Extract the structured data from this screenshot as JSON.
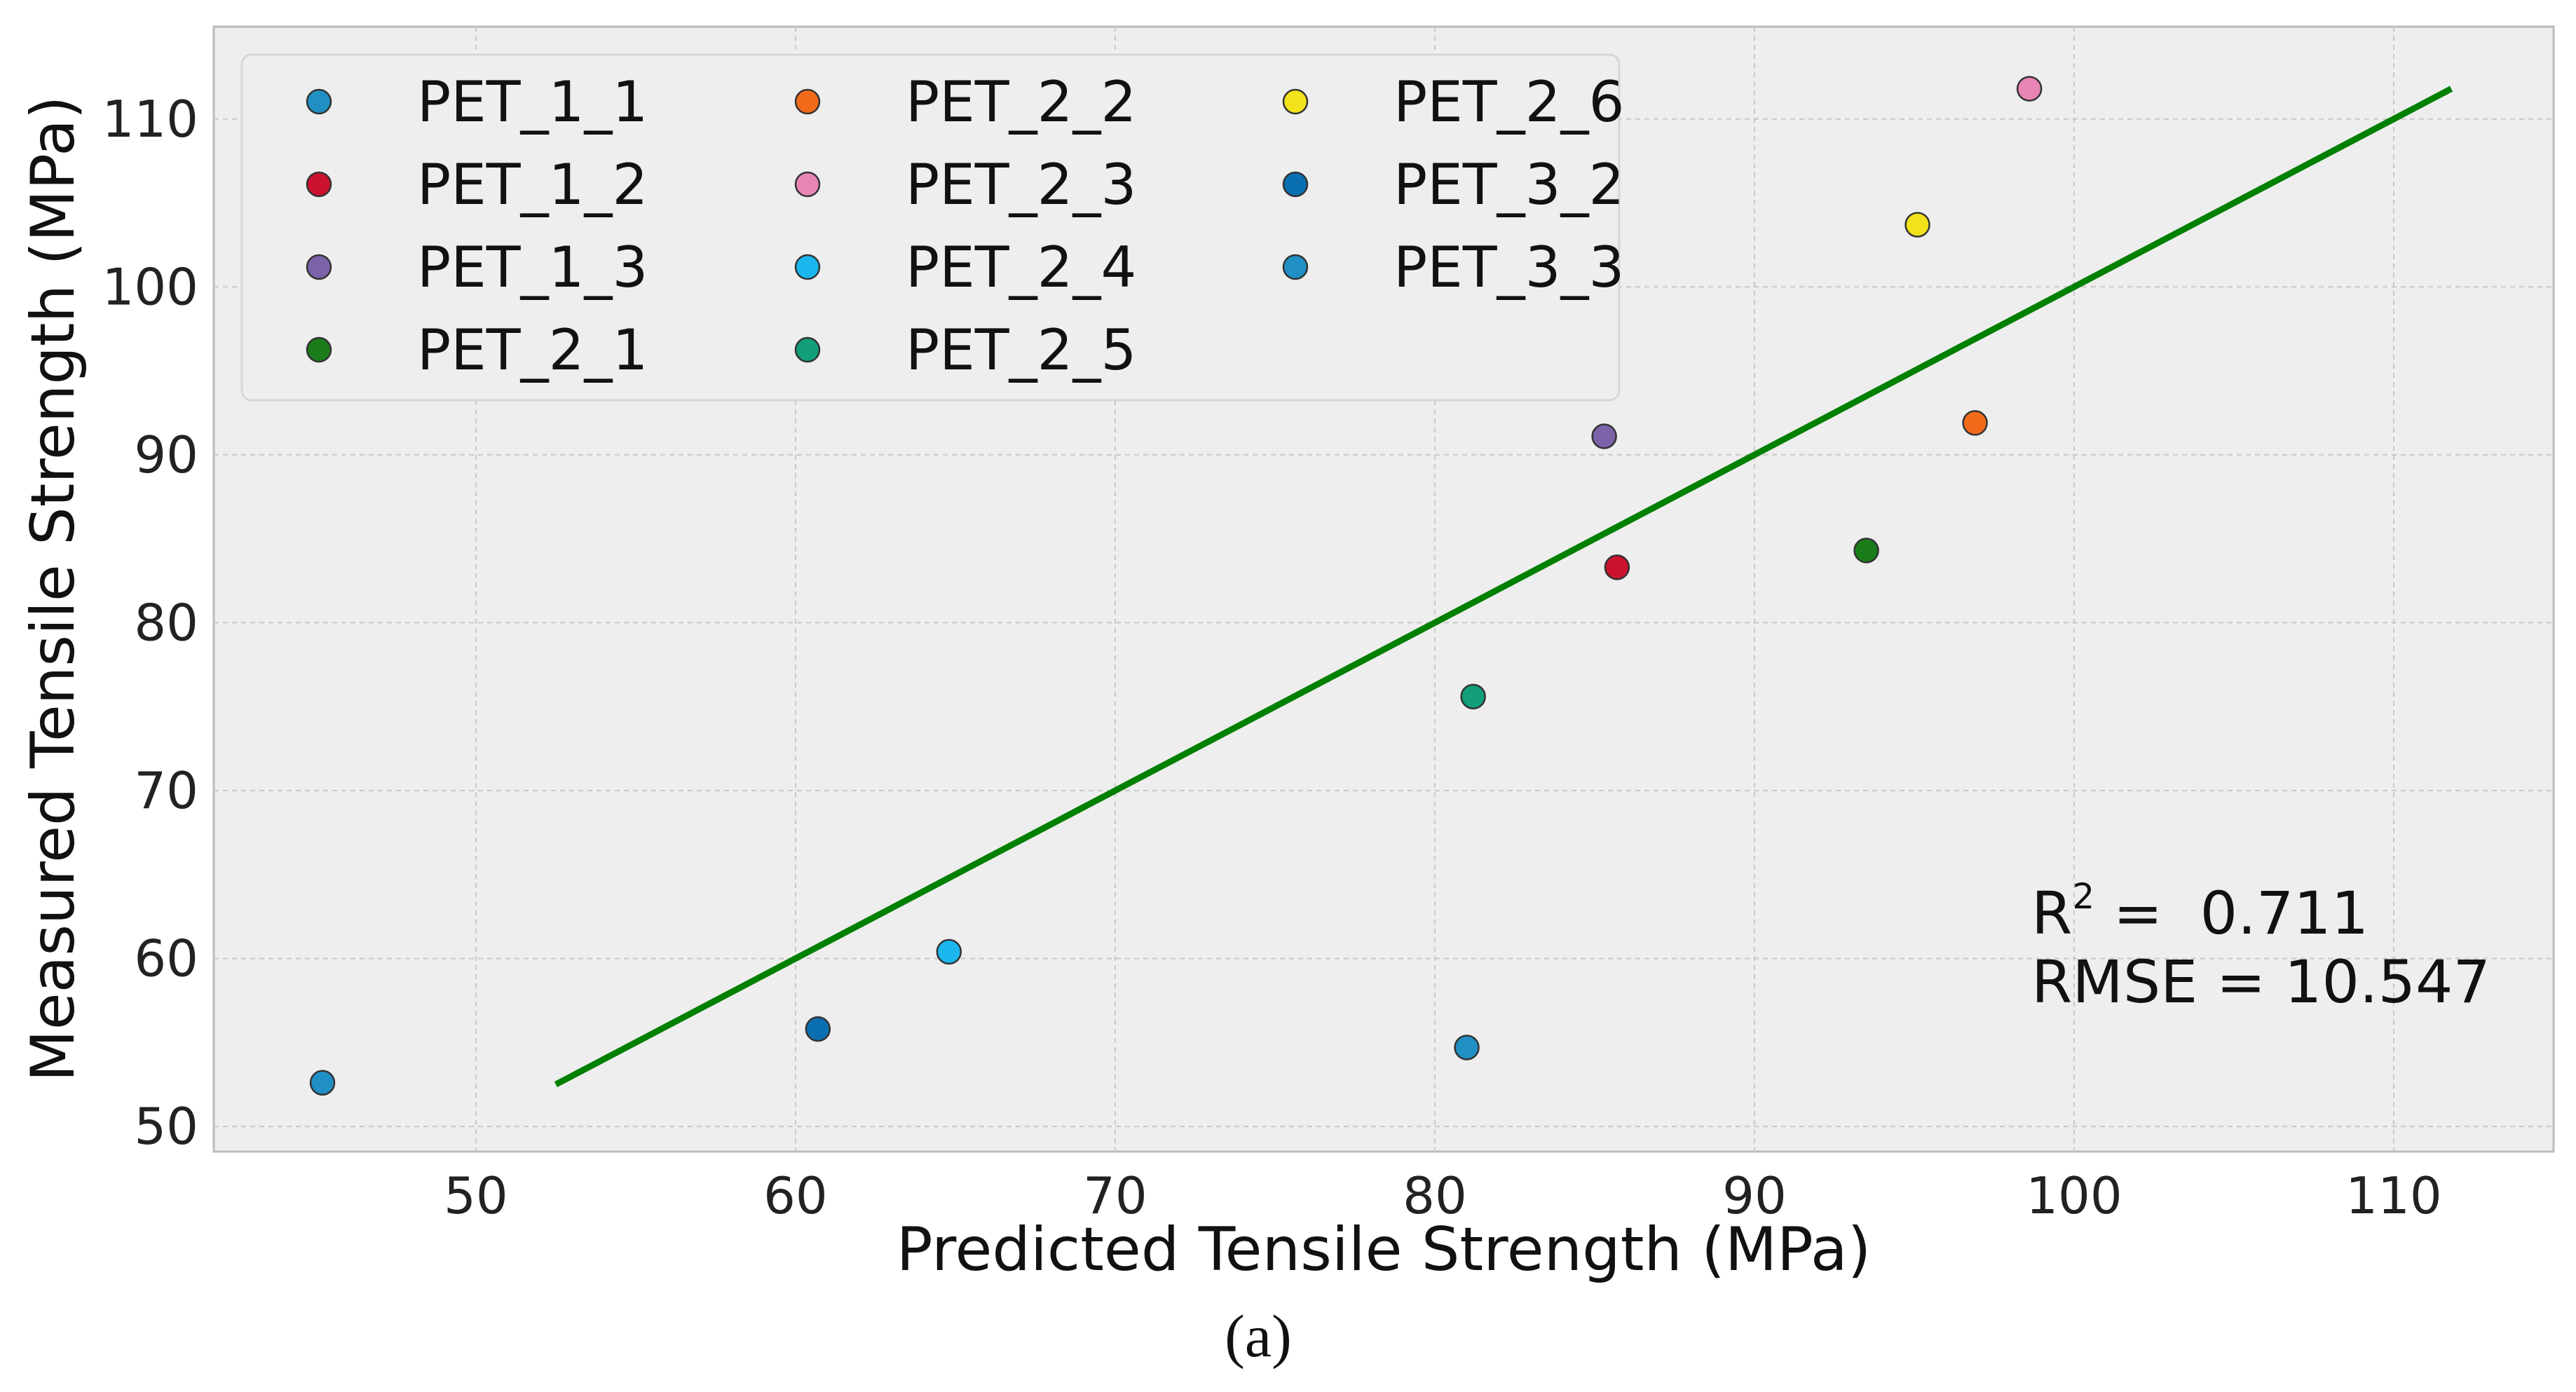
{
  "chart_data": {
    "type": "scatter",
    "title": "",
    "xlabel": "Predicted Tensile Strength (MPa)",
    "ylabel": "Measured Tensile Strength (MPa)",
    "xlim": [
      41.8,
      115.0
    ],
    "ylim": [
      48.5,
      115.5
    ],
    "xticks": [
      50,
      60,
      70,
      80,
      90,
      100,
      110
    ],
    "yticks": [
      50,
      60,
      70,
      80,
      90,
      100,
      110
    ],
    "grid": true,
    "legend_position": "top-left",
    "legend_columns": 3,
    "series": [
      {
        "name": "PET_1_1",
        "color": "#1f8fc4",
        "points": [
          {
            "x": 45.2,
            "y": 52.6
          },
          {
            "x": 81.0,
            "y": 54.7
          }
        ]
      },
      {
        "name": "PET_1_2",
        "color": "#cc1130",
        "points": [
          {
            "x": 85.7,
            "y": 83.3
          }
        ]
      },
      {
        "name": "PET_1_3",
        "color": "#7c62a9",
        "points": [
          {
            "x": 85.3,
            "y": 91.1
          }
        ]
      },
      {
        "name": "PET_2_1",
        "color": "#1a7d1a",
        "points": [
          {
            "x": 93.5,
            "y": 84.3
          }
        ]
      },
      {
        "name": "PET_2_2",
        "color": "#f16a1a",
        "points": [
          {
            "x": 96.9,
            "y": 91.9
          }
        ]
      },
      {
        "name": "PET_2_3",
        "color": "#e985b6",
        "points": [
          {
            "x": 98.6,
            "y": 111.8
          }
        ]
      },
      {
        "name": "PET_2_4",
        "color": "#1ab6ed",
        "points": [
          {
            "x": 64.8,
            "y": 60.4
          }
        ]
      },
      {
        "name": "PET_2_5",
        "color": "#119e79",
        "points": [
          {
            "x": 81.2,
            "y": 75.6
          }
        ]
      },
      {
        "name": "PET_2_6",
        "color": "#f2e21c",
        "points": [
          {
            "x": 95.1,
            "y": 103.7
          }
        ]
      },
      {
        "name": "PET_3_2",
        "color": "#0a6fb0",
        "points": [
          {
            "x": 60.7,
            "y": 55.8
          }
        ]
      },
      {
        "name": "PET_3_3",
        "color": "#1f8fc4",
        "points": []
      }
    ],
    "fit_line": {
      "color": "#008000",
      "x": [
        52.5,
        111.8
      ],
      "y": [
        52.5,
        111.8
      ]
    },
    "annotations": {
      "r2_prefix": "R",
      "r2_superscript": "2",
      "r2_value": " =  0.711",
      "rmse": "RMSE = 10.547"
    }
  },
  "caption": "(a)",
  "colors": {
    "plot_background": "#eeeeee",
    "grid": "#c8c8c8"
  }
}
